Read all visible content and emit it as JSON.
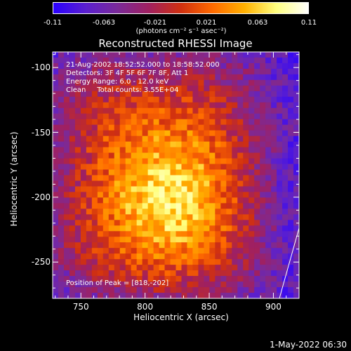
{
  "colorbar": {
    "tick_labels": [
      "-0.11",
      "-0.063",
      "-0.021",
      "0.021",
      "0.063",
      "0.11"
    ],
    "units": "(photons cm⁻² s⁻¹ asec⁻²)",
    "colors": [
      "#2a00ff",
      "#5a1fd0",
      "#7a2a9a",
      "#a02060",
      "#d03010",
      "#ff6a00",
      "#ffb000",
      "#ffff80",
      "#ffffff"
    ]
  },
  "chart_data": {
    "type": "heatmap",
    "title": "Reconstructed RHESSI Image",
    "xlabel": "Heliocentric X (arcsec)",
    "ylabel": "Heliocentric Y (arcsec)",
    "xlim": [
      728,
      920
    ],
    "ylim": [
      -278,
      -88
    ],
    "xticks": [
      "750",
      "800",
      "850",
      "900"
    ],
    "yticks": [
      "-100",
      "-150",
      "-200",
      "-250"
    ],
    "color_scale_range": [
      -0.11,
      0.11
    ],
    "peak": {
      "x": 818,
      "y": -202
    },
    "annotations": [
      "21-Aug-2002 18:52:52.000 to 18:58:52.000",
      "Detectors: 3F 4F 5F 6F 7F 8F, Att 1",
      "Energy Range: 6.0 - 12.0 keV",
      "Clean     Total counts: 3.55E+04"
    ],
    "peak_label": "Position of Peak = [818,-202]"
  },
  "footer": {
    "timestamp": "1-May-2022 06:30"
  }
}
